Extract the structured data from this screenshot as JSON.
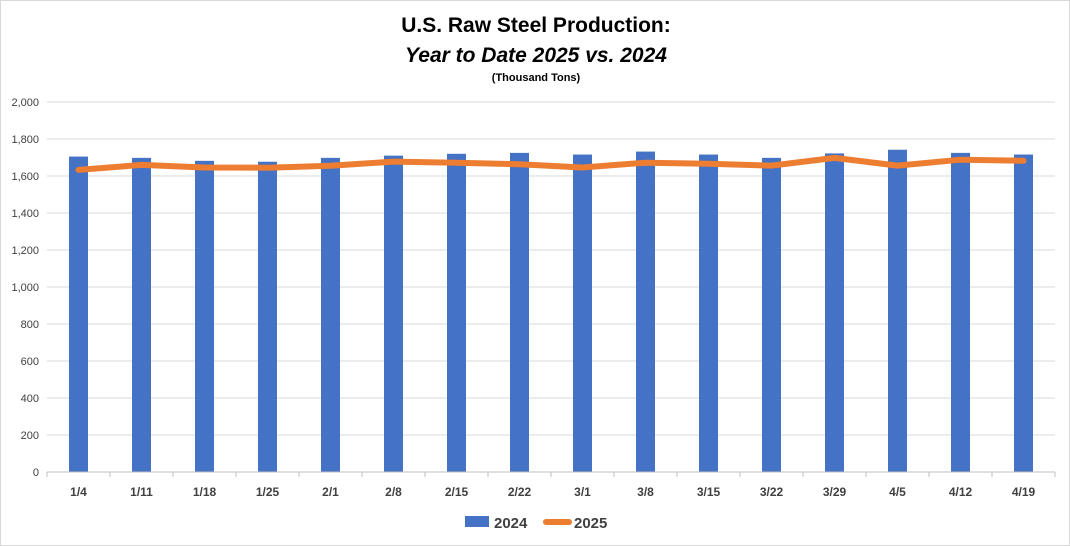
{
  "chart_data": {
    "type": "bar",
    "title": "U.S. Raw Steel Production:",
    "subtitle": "Year to Date 2025 vs. 2024",
    "units_label": "(Thousand Tons)",
    "categories": [
      "1/4",
      "1/11",
      "1/18",
      "1/25",
      "2/1",
      "2/8",
      "2/15",
      "2/22",
      "3/1",
      "3/8",
      "3/15",
      "3/22",
      "3/29",
      "4/5",
      "4/12",
      "4/19"
    ],
    "ylim": [
      0,
      2000
    ],
    "yticks": [
      "0",
      "200",
      "400",
      "600",
      "800",
      "1,000",
      "1,200",
      "1,400",
      "1,600",
      "1,800",
      "2,000"
    ],
    "grid": true,
    "legend_position": "bottom",
    "series": [
      {
        "name": "2024",
        "type": "bar",
        "color": "#4472C4",
        "values": [
          1705,
          1698,
          1682,
          1677,
          1698,
          1710,
          1720,
          1725,
          1716,
          1732,
          1716,
          1698,
          1722,
          1742,
          1725,
          1716
        ]
      },
      {
        "name": "2025",
        "type": "line",
        "color": "#ED7D31",
        "values": [
          1633,
          1660,
          1646,
          1645,
          1655,
          1678,
          1672,
          1663,
          1646,
          1672,
          1666,
          1656,
          1698,
          1656,
          1688,
          1682
        ]
      }
    ]
  }
}
